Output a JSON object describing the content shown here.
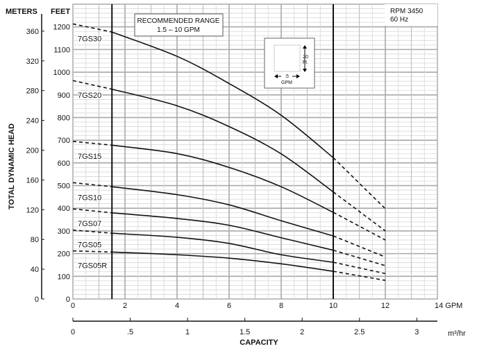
{
  "chart_data": {
    "type": "line",
    "title": "",
    "xlabel": "CAPACITY",
    "ylabel": "TOTAL DYNAMIC HEAD",
    "x_unit": "GPM",
    "x_unit_secondary": "m³/hr",
    "y_unit_left_header": "METERS",
    "y_unit_right_header": "FEET",
    "xlim": [
      0,
      14
    ],
    "ylim_feet": [
      0,
      1300
    ],
    "grid": true,
    "x_ticks": [
      "0",
      "2",
      "4",
      "6",
      "8",
      "10",
      "12",
      "14"
    ],
    "x_tick_values": [
      0,
      2,
      4,
      6,
      8,
      10,
      12,
      14
    ],
    "x_last_tick_label": "14 GPM",
    "m3hr_ticks": [
      "0",
      ".5",
      "1",
      "1.5",
      "2",
      "2.5",
      "3"
    ],
    "m3hr_tick_values": [
      0,
      0.5,
      1,
      1.5,
      2,
      2.5,
      3
    ],
    "feet_ticks": [
      "0",
      "100",
      "200",
      "300",
      "400",
      "500",
      "600",
      "700",
      "800",
      "900",
      "1000",
      "1100",
      "1200"
    ],
    "feet_tick_values": [
      0,
      100,
      200,
      300,
      400,
      500,
      600,
      700,
      800,
      900,
      1000,
      1100,
      1200
    ],
    "meter_ticks": [
      "0",
      "40",
      "80",
      "120",
      "160",
      "200",
      "240",
      "280",
      "320",
      "360"
    ],
    "meter_tick_values": [
      0,
      40,
      80,
      120,
      160,
      200,
      240,
      280,
      320,
      360
    ],
    "recommended_range": {
      "line1": "RECOMMENDED RANGE",
      "line2": "1.5 – 10 GPM",
      "min_gpm": 1.5,
      "max_gpm": 10
    },
    "rpm_note": {
      "line1": "RPM 3450",
      "line2": "60 Hz"
    },
    "scale_key": {
      "vertical": "20",
      "vertical_unit": "Ft.",
      "horizontal": ".5",
      "horizontal_unit": "GPM"
    },
    "x": [
      0,
      1.5,
      4,
      6,
      8,
      10,
      12
    ],
    "series": [
      {
        "name": "7GS30",
        "values": [
          1213,
          1177,
          1070,
          950,
          810,
          623,
          398
        ]
      },
      {
        "name": "7GS20",
        "values": [
          963,
          925,
          852,
          760,
          640,
          472,
          300
        ]
      },
      {
        "name": "7GS15",
        "values": [
          695,
          678,
          641,
          580,
          495,
          382,
          260
        ]
      },
      {
        "name": "7GS10",
        "values": [
          513,
          495,
          460,
          415,
          345,
          278,
          185
        ]
      },
      {
        "name": "7GS07",
        "values": [
          397,
          380,
          355,
          325,
          270,
          215,
          147
        ]
      },
      {
        "name": "7GS05",
        "values": [
          304,
          290,
          272,
          245,
          195,
          162,
          112
        ]
      },
      {
        "name": "7GS05R",
        "values": [
          212,
          207,
          195,
          180,
          155,
          122,
          82
        ]
      }
    ]
  }
}
